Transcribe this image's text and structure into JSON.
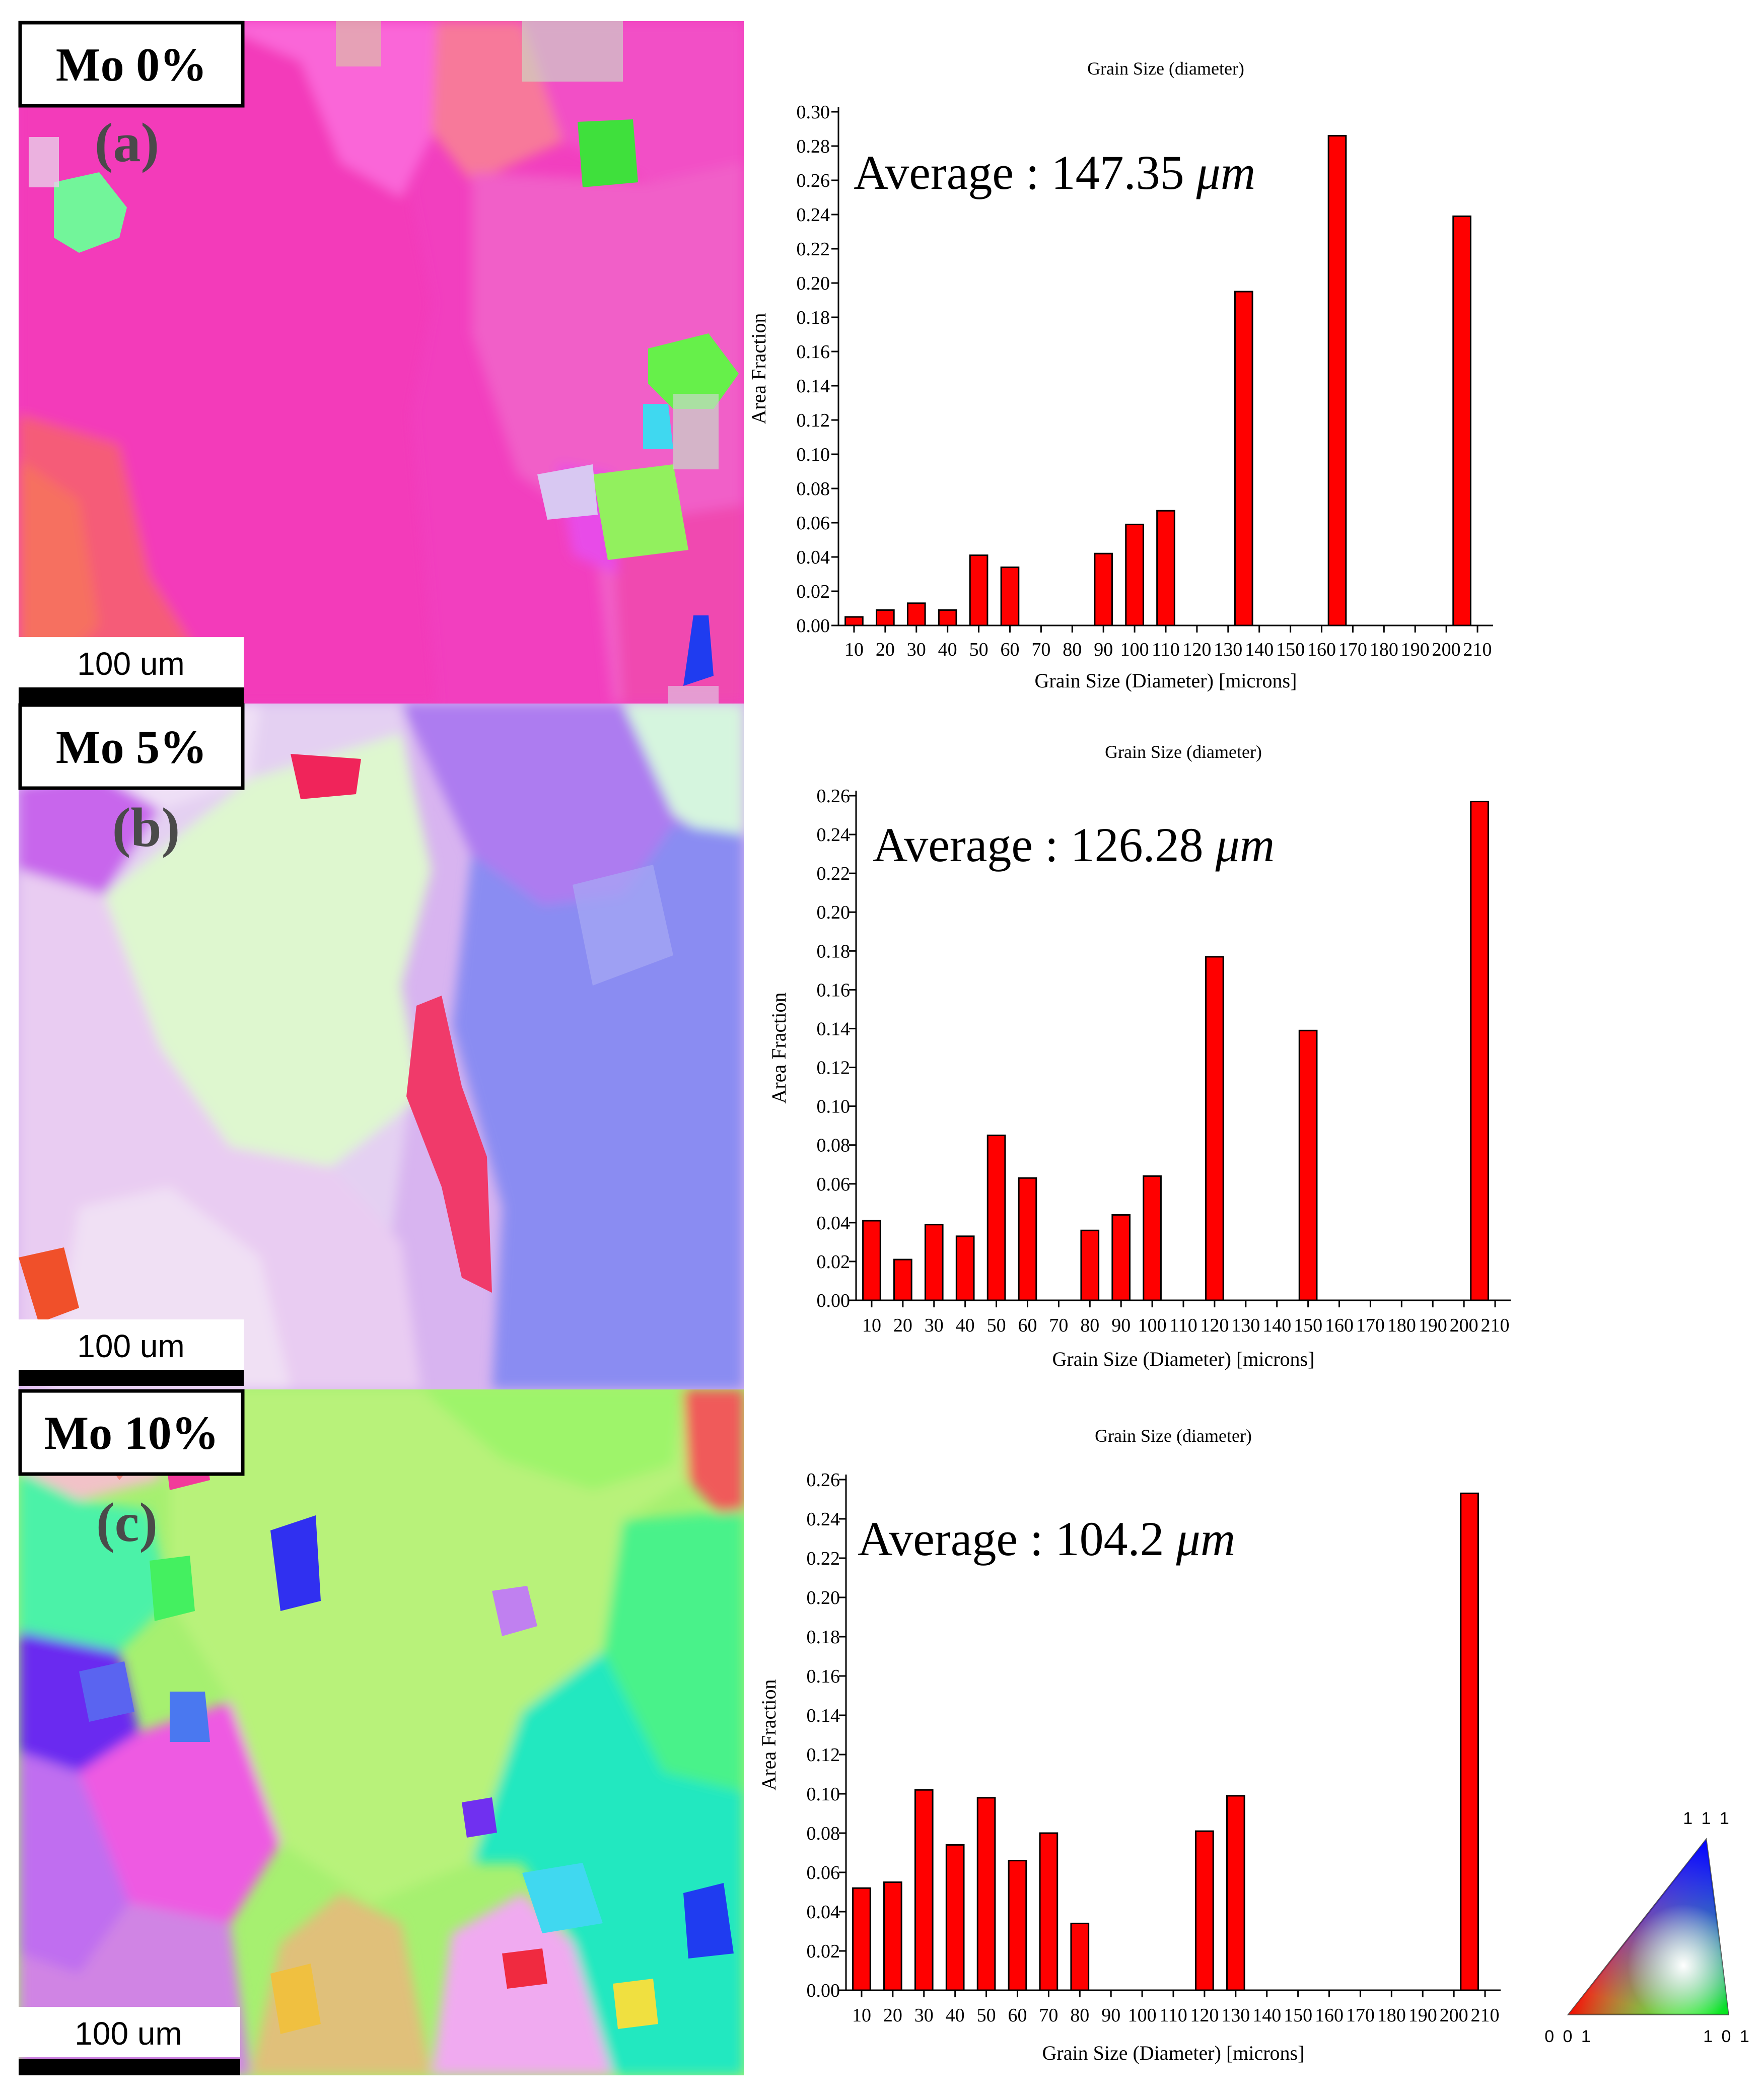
{
  "colors": {
    "bar": "#ff0000",
    "bar_outline": "#000000",
    "axis": "#000000",
    "label_box_border": "#000000"
  },
  "panels": [
    {
      "composition_label": "Mo 0%",
      "panel_letter": "(a)",
      "scale_bar_label": "100 um",
      "map_palette": "magenta-pink dominant grains with a few green and blue grains"
    },
    {
      "composition_label": "Mo 5%",
      "panel_letter": "(b)",
      "scale_bar_label": "100 um",
      "map_palette": "pale green, lilac and violet-blue grains with a red sliver"
    },
    {
      "composition_label": "Mo 10%",
      "panel_letter": "(c)",
      "scale_bar_label": "100 um",
      "map_palette": "many smaller grains in green, magenta, blue, cyan and yellow-green"
    }
  ],
  "chart_data": [
    {
      "type": "bar",
      "title": "Grain Size (diameter)",
      "annotation": {
        "text": "Average : 147.35",
        "unit": "μm"
      },
      "xlabel": "Grain Size (Diameter) [microns]",
      "ylabel": "Area Fraction",
      "categories": [
        "10",
        "20",
        "30",
        "40",
        "50",
        "60",
        "70",
        "80",
        "90",
        "100",
        "110",
        "120",
        "130",
        "140",
        "150",
        "160",
        "170",
        "180",
        "190",
        "200",
        "210"
      ],
      "bars": [
        {
          "x": 10,
          "value": 0.005
        },
        {
          "x": 20,
          "value": 0.009
        },
        {
          "x": 30,
          "value": 0.013
        },
        {
          "x": 40,
          "value": 0.009
        },
        {
          "x": 50,
          "value": 0.041
        },
        {
          "x": 60,
          "value": 0.034
        },
        {
          "x": 90,
          "value": 0.042
        },
        {
          "x": 100,
          "value": 0.059
        },
        {
          "x": 110,
          "value": 0.067
        },
        {
          "x": 135,
          "value": 0.195
        },
        {
          "x": 165,
          "value": 0.286
        },
        {
          "x": 205,
          "value": 0.239
        }
      ],
      "ylim": [
        0,
        0.3
      ],
      "yticks": [
        "0.00",
        "0.02",
        "0.04",
        "0.06",
        "0.08",
        "0.10",
        "0.12",
        "0.14",
        "0.16",
        "0.18",
        "0.20",
        "0.22",
        "0.24",
        "0.26",
        "0.28",
        "0.30"
      ],
      "xlim": [
        5,
        215
      ]
    },
    {
      "type": "bar",
      "title": "Grain Size (diameter)",
      "annotation": {
        "text": "Average : 126.28",
        "unit": "μm"
      },
      "xlabel": "Grain Size (Diameter) [microns]",
      "ylabel": "Area Fraction",
      "categories": [
        "10",
        "20",
        "30",
        "40",
        "50",
        "60",
        "70",
        "80",
        "90",
        "100",
        "110",
        "120",
        "130",
        "140",
        "150",
        "160",
        "170",
        "180",
        "190",
        "200",
        "210"
      ],
      "bars": [
        {
          "x": 10,
          "value": 0.041
        },
        {
          "x": 20,
          "value": 0.021
        },
        {
          "x": 30,
          "value": 0.039
        },
        {
          "x": 40,
          "value": 0.033
        },
        {
          "x": 50,
          "value": 0.085
        },
        {
          "x": 60,
          "value": 0.063
        },
        {
          "x": 80,
          "value": 0.036
        },
        {
          "x": 90,
          "value": 0.044
        },
        {
          "x": 100,
          "value": 0.064
        },
        {
          "x": 120,
          "value": 0.177
        },
        {
          "x": 150,
          "value": 0.139
        },
        {
          "x": 205,
          "value": 0.257
        }
      ],
      "ylim": [
        0,
        0.26
      ],
      "yticks": [
        "0.00",
        "0.02",
        "0.04",
        "0.06",
        "0.08",
        "0.10",
        "0.12",
        "0.14",
        "0.16",
        "0.18",
        "0.20",
        "0.22",
        "0.24",
        "0.26"
      ],
      "xlim": [
        5,
        215
      ]
    },
    {
      "type": "bar",
      "title": "Grain Size (diameter)",
      "annotation": {
        "text": "Average : 104.2",
        "unit": "μm"
      },
      "xlabel": "Grain Size (Diameter) [microns]",
      "ylabel": "Area Fraction",
      "categories": [
        "10",
        "20",
        "30",
        "40",
        "50",
        "60",
        "70",
        "80",
        "90",
        "100",
        "110",
        "120",
        "130",
        "140",
        "150",
        "160",
        "170",
        "180",
        "190",
        "200",
        "210"
      ],
      "bars": [
        {
          "x": 10,
          "value": 0.052
        },
        {
          "x": 20,
          "value": 0.055
        },
        {
          "x": 30,
          "value": 0.102
        },
        {
          "x": 40,
          "value": 0.074
        },
        {
          "x": 50,
          "value": 0.098
        },
        {
          "x": 60,
          "value": 0.066
        },
        {
          "x": 70,
          "value": 0.08
        },
        {
          "x": 80,
          "value": 0.034
        },
        {
          "x": 120,
          "value": 0.081
        },
        {
          "x": 130,
          "value": 0.099
        },
        {
          "x": 205,
          "value": 0.253
        }
      ],
      "ylim": [
        0,
        0.26
      ],
      "yticks": [
        "0.00",
        "0.02",
        "0.04",
        "0.06",
        "0.08",
        "0.10",
        "0.12",
        "0.14",
        "0.16",
        "0.18",
        "0.20",
        "0.22",
        "0.24",
        "0.26"
      ],
      "xlim": [
        5,
        215
      ]
    }
  ],
  "ipf_key": {
    "corner_labels": {
      "top": "1 1 1",
      "left": "0 0 1",
      "right": "1 0 1"
    }
  }
}
